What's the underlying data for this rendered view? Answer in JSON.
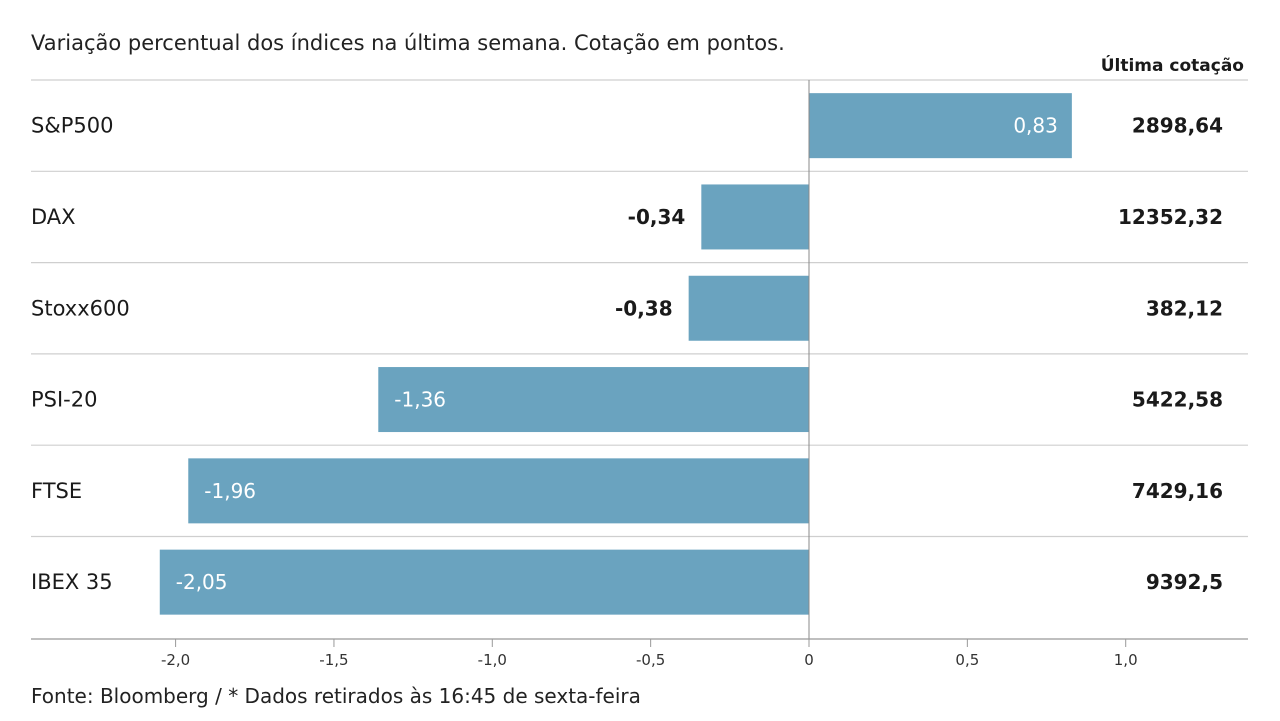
{
  "subtitle": "Variação percentual dos índices na última semana. Cotação em pontos.",
  "column_header": "Última cotação",
  "footer": "Fonte: Bloomberg / * Dados retirados às 16:45 de sexta-feira",
  "colors": {
    "bar": "#6aa3bf",
    "grid": "#cfcfcf",
    "axis": "#999999",
    "text": "#1a1a1a"
  },
  "chart_data": {
    "type": "bar",
    "orientation": "horizontal",
    "categories": [
      "S&P500",
      "DAX",
      "Stoxx600",
      "PSI-20",
      "FTSE",
      "IBEX 35"
    ],
    "values": [
      0.83,
      -0.34,
      -0.38,
      -1.36,
      -1.96,
      -2.05
    ],
    "value_labels": [
      "0,83",
      "-0,34",
      "-0,38",
      "-1,36",
      "-1,96",
      "-2,05"
    ],
    "last_quote": [
      "2898,64",
      "12352,32",
      "382,12",
      "5422,58",
      "7429,16",
      "9392,5"
    ],
    "xlim": [
      -2.5,
      1.4
    ],
    "xticks": [
      -2.0,
      -1.5,
      -1.0,
      -0.5,
      0,
      0.5,
      1.0
    ],
    "xtick_labels": [
      "-2,0",
      "-1,5",
      "-1,0",
      "-0,5",
      "0",
      "0,5",
      "1,0"
    ],
    "grid": true
  }
}
